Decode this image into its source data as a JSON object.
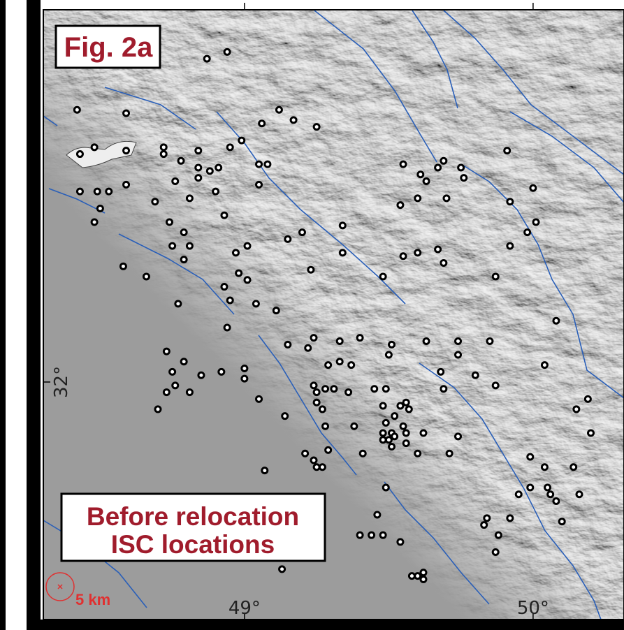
{
  "figure_label": "Fig. 2a",
  "legend_text": [
    "Before relocation",
    "ISC locations"
  ],
  "scale_label": "5 km",
  "chart_data": {
    "type": "scatter",
    "xlim": [
      48.303,
      50.315
    ],
    "ylim": [
      31.302,
      33.094
    ],
    "xticks": [
      {
        "value": 49,
        "label": "49°"
      },
      {
        "value": 50,
        "label": "50°"
      }
    ],
    "yticks": [
      {
        "value": 32,
        "label": "32°"
      }
    ],
    "color": "#000000",
    "x": [
      48.87,
      48.94,
      48.42,
      48.59,
      49.12,
      49.06,
      49.17,
      49.25,
      48.99,
      48.95,
      48.72,
      48.48,
      48.43,
      48.59,
      48.72,
      48.78,
      48.84,
      48.91,
      48.84,
      48.88,
      48.76,
      48.84,
      49.05,
      49.08,
      49.05,
      48.9,
      48.81,
      48.69,
      48.43,
      48.49,
      48.53,
      48.59,
      48.5,
      48.48,
      48.74,
      48.79,
      48.93,
      48.75,
      48.81,
      48.79,
      48.97,
      49.01,
      49.15,
      49.2,
      49.34,
      49.34,
      49.23,
      48.98,
      49.01,
      48.58,
      48.66,
      48.93,
      48.95,
      48.77,
      49.04,
      49.11,
      48.94,
      49.48,
      49.55,
      49.61,
      49.63,
      49.67,
      49.69,
      49.75,
      49.76,
      49.6,
      49.54,
      49.7,
      49.91,
      50.0,
      49.92,
      50.01,
      49.98,
      49.92,
      49.87,
      49.55,
      49.6,
      49.67,
      49.69,
      50.08,
      49.15,
      49.22,
      49.24,
      49.33,
      49.4,
      49.29,
      49.33,
      49.37,
      49.51,
      49.5,
      49.63,
      49.74,
      49.74,
      49.85,
      49.68,
      49.8,
      50.04,
      48.73,
      48.79,
      48.75,
      48.85,
      48.92,
      49.0,
      49.0,
      48.76,
      48.73,
      48.81,
      48.7,
      49.24,
      49.25,
      49.28,
      49.31,
      49.36,
      49.45,
      49.49,
      49.69,
      49.87,
      50.15,
      50.19,
      49.05,
      49.25,
      49.27,
      49.14,
      49.48,
      49.54,
      49.56,
      49.57,
      49.52,
      49.55,
      49.49,
      49.48,
      49.51,
      49.52,
      49.56,
      49.62,
      49.48,
      49.5,
      49.28,
      49.38,
      49.74,
      50.2,
      49.29,
      49.21,
      49.24,
      49.25,
      49.27,
      49.41,
      49.51,
      49.56,
      49.6,
      49.71,
      49.99,
      50.04,
      50.14,
      49.07,
      49.99,
      50.05,
      50.06,
      50.08,
      50.16,
      49.95,
      49.49,
      49.46,
      50.1,
      49.92,
      49.84,
      49.83,
      49.88,
      49.48,
      49.4,
      49.44,
      49.54,
      49.87,
      49.13,
      49.58,
      49.6,
      49.62,
      49.62
    ],
    "y": [
      32.95,
      32.97,
      32.8,
      32.79,
      32.8,
      32.76,
      32.77,
      32.75,
      32.71,
      32.69,
      32.69,
      32.69,
      32.67,
      32.68,
      32.67,
      32.65,
      32.68,
      32.63,
      32.63,
      32.62,
      32.59,
      32.6,
      32.64,
      32.64,
      32.58,
      32.56,
      32.54,
      32.53,
      32.56,
      32.56,
      32.56,
      32.58,
      32.51,
      32.47,
      32.47,
      32.44,
      32.49,
      32.4,
      32.4,
      32.36,
      32.38,
      32.4,
      32.42,
      32.44,
      32.46,
      32.38,
      32.33,
      32.32,
      32.3,
      32.34,
      32.31,
      32.28,
      32.24,
      32.23,
      32.23,
      32.21,
      32.16,
      32.31,
      32.64,
      32.61,
      32.59,
      32.63,
      32.65,
      32.63,
      32.6,
      32.54,
      32.52,
      32.54,
      32.68,
      32.57,
      32.53,
      32.47,
      32.44,
      32.4,
      32.31,
      32.37,
      32.38,
      32.39,
      32.35,
      32.18,
      32.11,
      32.1,
      32.13,
      32.12,
      32.13,
      32.05,
      32.06,
      32.05,
      32.11,
      32.08,
      32.12,
      32.12,
      32.08,
      32.12,
      32.03,
      32.02,
      32.05,
      32.09,
      32.06,
      32.03,
      32.02,
      32.03,
      32.04,
      32.01,
      31.99,
      31.97,
      31.97,
      31.92,
      31.99,
      31.97,
      31.98,
      31.98,
      31.97,
      31.98,
      31.98,
      31.98,
      31.99,
      31.92,
      31.95,
      31.95,
      31.94,
      31.92,
      31.9,
      31.93,
      31.93,
      31.94,
      31.92,
      31.9,
      31.87,
      31.88,
      31.85,
      31.85,
      31.84,
      31.85,
      31.85,
      31.83,
      31.83,
      31.87,
      31.87,
      31.84,
      31.85,
      31.8,
      31.79,
      31.77,
      31.75,
      31.75,
      31.79,
      31.81,
      31.82,
      31.79,
      31.79,
      31.78,
      31.75,
      31.75,
      31.74,
      31.69,
      31.69,
      31.67,
      31.65,
      31.67,
      31.67,
      31.69,
      31.61,
      31.59,
      31.6,
      31.6,
      31.58,
      31.55,
      31.55,
      31.55,
      31.55,
      31.53,
      31.5,
      31.45,
      31.43,
      31.43,
      31.44,
      31.42
    ]
  }
}
